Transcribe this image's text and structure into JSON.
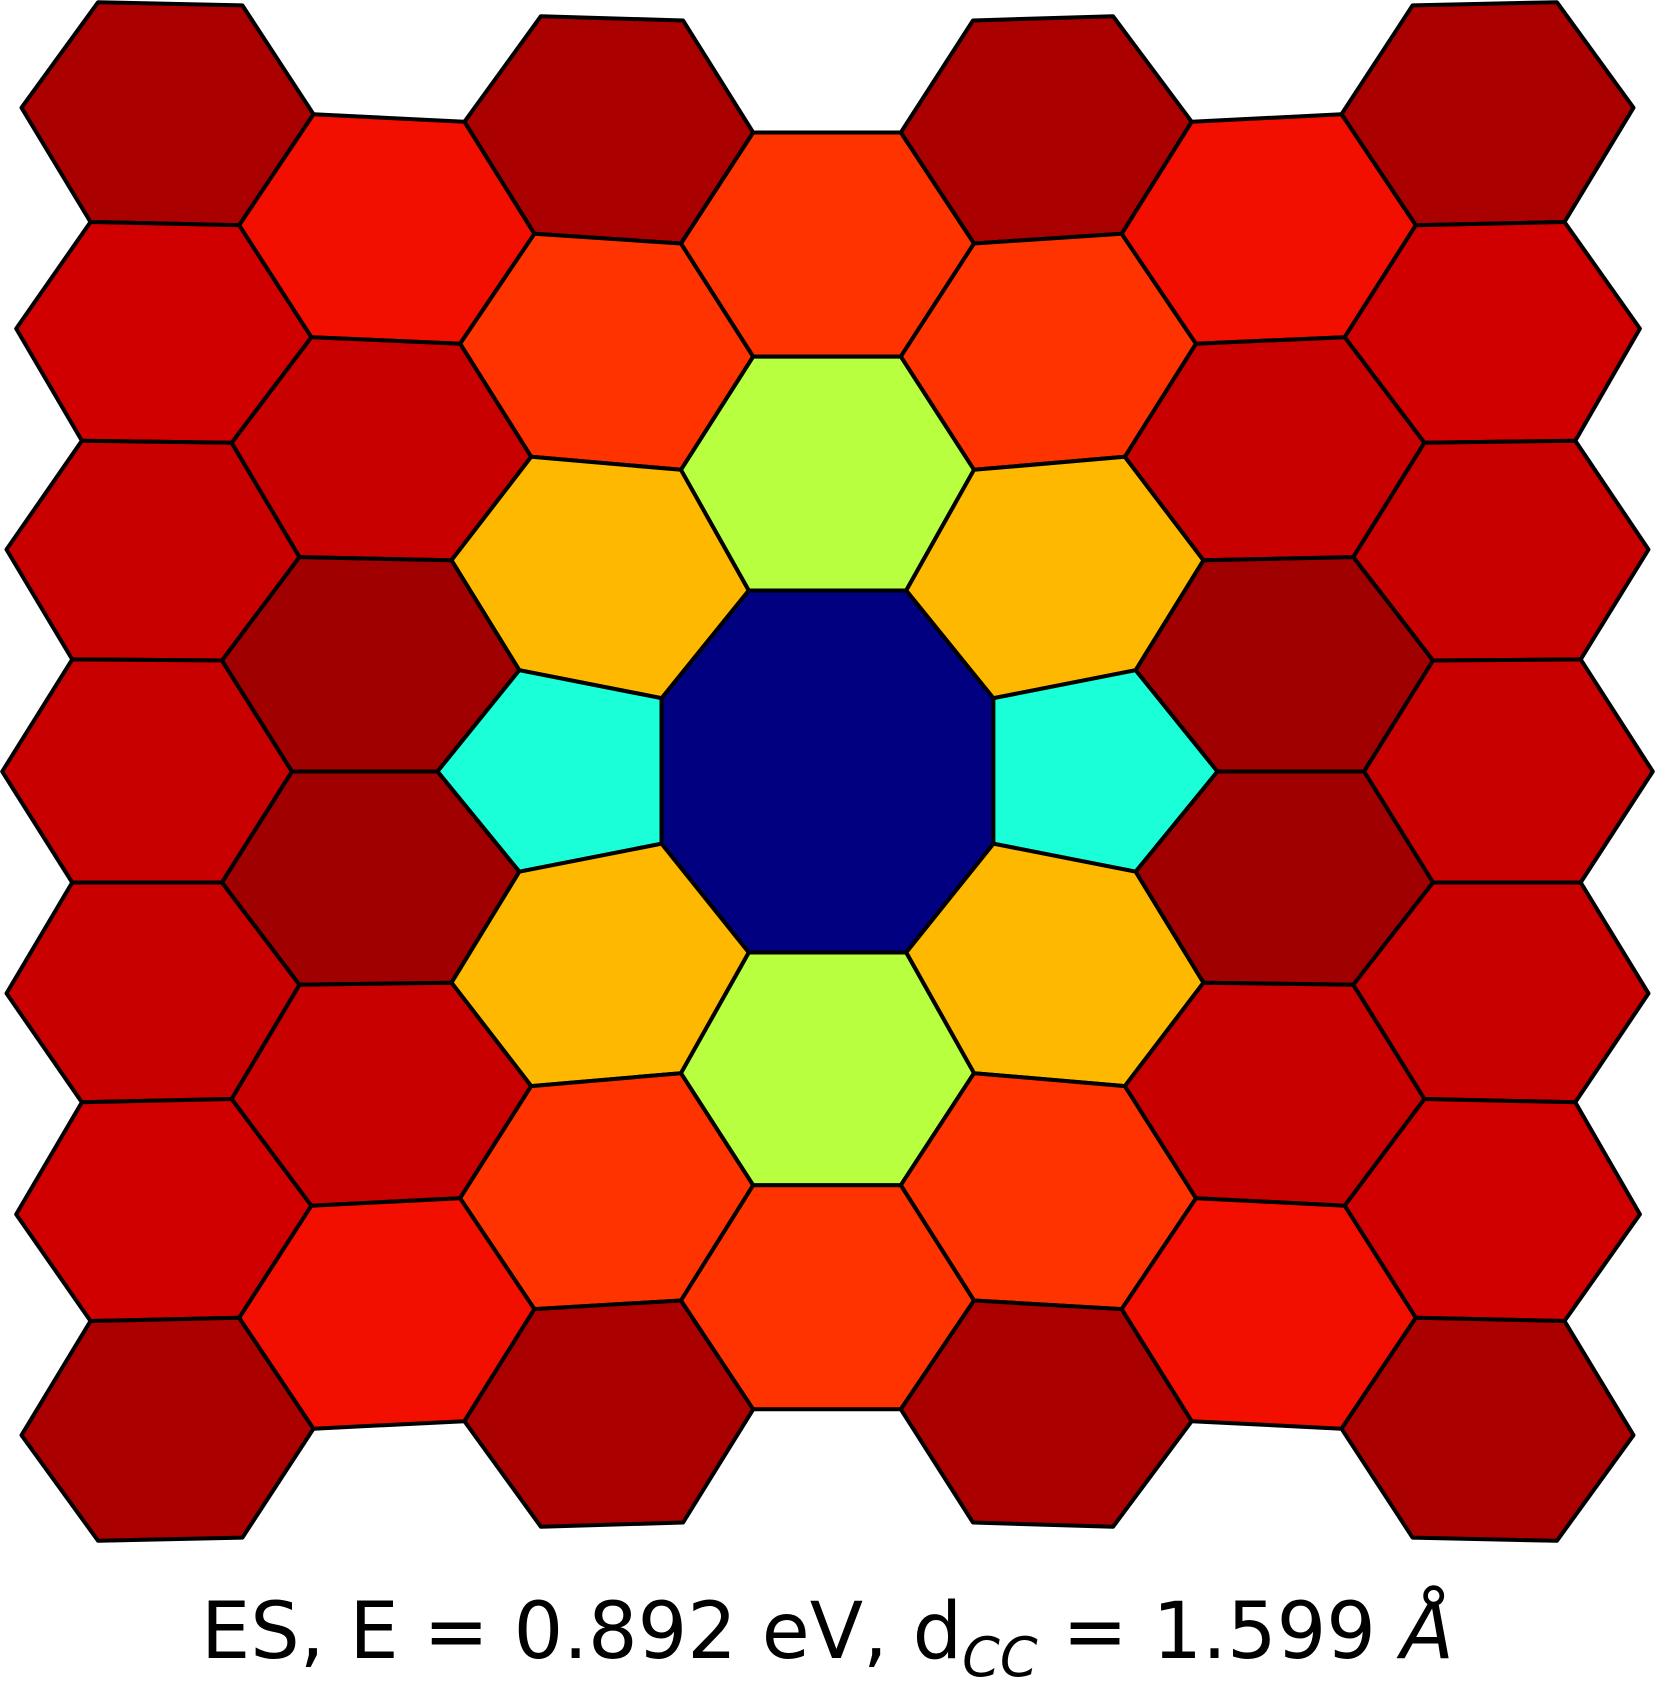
{
  "caption": {
    "prefix": "ES, E = 0.892 eV, d",
    "subscript": "CC",
    "middle": " = 1.599 ",
    "unit": "Å"
  },
  "colors": {
    "stroke": "#000000",
    "dark_red": "#AA0000",
    "darker_red": "#A00000",
    "red": "#C80000",
    "mid_red": "#D00000",
    "bright_red": "#F20F00",
    "orange_red": "#FF3300",
    "amber": "#FFB800",
    "lime": "#B8FF40",
    "cyan": "#1AFFD8",
    "navy": "#000080"
  },
  "legend": [
    {
      "name": "octagon-ring",
      "color": "navy"
    },
    {
      "name": "pentagon-ring",
      "color": "cyan"
    },
    {
      "name": "hexagon-ring-near",
      "color": "lime"
    },
    {
      "name": "hexagon-ring-adjacent",
      "color": "amber"
    },
    {
      "name": "hexagon-ring-far",
      "color": "orange_red"
    }
  ]
}
